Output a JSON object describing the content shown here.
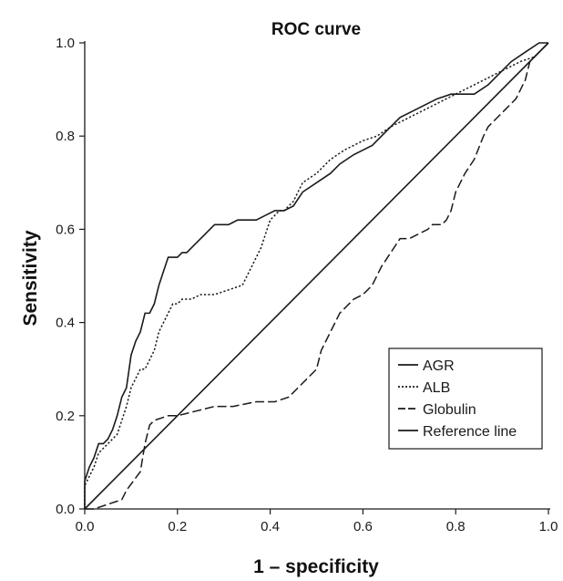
{
  "chart_data": {
    "type": "line",
    "title": "ROC curve",
    "xlabel": "1 – specificity",
    "ylabel": "Sensitivity",
    "xlim": [
      0,
      1
    ],
    "ylim": [
      0,
      1
    ],
    "xticks": [
      "0.0",
      "0.2",
      "0.4",
      "0.6",
      "0.8",
      "1.0"
    ],
    "yticks": [
      "0.0",
      "0.2",
      "0.4",
      "0.6",
      "0.8",
      "1.0"
    ],
    "grid": false,
    "legend_position": "bottom-right",
    "series": [
      {
        "name": "AGR",
        "style": "solid",
        "color": "#1a1a1a",
        "x": [
          0,
          0,
          0.01,
          0.02,
          0.03,
          0.04,
          0.05,
          0.06,
          0.07,
          0.08,
          0.09,
          0.1,
          0.11,
          0.12,
          0.13,
          0.14,
          0.15,
          0.16,
          0.17,
          0.18,
          0.19,
          0.2,
          0.21,
          0.22,
          0.24,
          0.26,
          0.28,
          0.3,
          0.31,
          0.33,
          0.37,
          0.39,
          0.41,
          0.43,
          0.45,
          0.47,
          0.5,
          0.53,
          0.55,
          0.58,
          0.6,
          0.62,
          0.64,
          0.66,
          0.68,
          0.72,
          0.76,
          0.79,
          0.84,
          0.87,
          0.9,
          0.92,
          0.95,
          0.98,
          1.0
        ],
        "y": [
          0,
          0.06,
          0.09,
          0.11,
          0.14,
          0.14,
          0.15,
          0.17,
          0.2,
          0.24,
          0.26,
          0.33,
          0.36,
          0.38,
          0.42,
          0.42,
          0.44,
          0.48,
          0.51,
          0.54,
          0.54,
          0.54,
          0.55,
          0.55,
          0.57,
          0.59,
          0.61,
          0.61,
          0.61,
          0.62,
          0.62,
          0.63,
          0.64,
          0.64,
          0.65,
          0.68,
          0.7,
          0.72,
          0.74,
          0.76,
          0.77,
          0.78,
          0.8,
          0.82,
          0.84,
          0.86,
          0.88,
          0.89,
          0.89,
          0.91,
          0.94,
          0.96,
          0.98,
          1.0,
          1.0
        ]
      },
      {
        "name": "ALB",
        "style": "dotted",
        "color": "#1a1a1a",
        "x": [
          0,
          0,
          0.01,
          0.02,
          0.03,
          0.05,
          0.07,
          0.08,
          0.09,
          0.1,
          0.11,
          0.12,
          0.13,
          0.14,
          0.15,
          0.16,
          0.17,
          0.18,
          0.19,
          0.2,
          0.21,
          0.23,
          0.25,
          0.28,
          0.31,
          0.34,
          0.36,
          0.38,
          0.4,
          0.42,
          0.43,
          0.45,
          0.47,
          0.5,
          0.53,
          0.56,
          0.6,
          0.63,
          0.66,
          0.7,
          0.74,
          0.78,
          0.82,
          0.86,
          0.9,
          0.94,
          0.97,
          1.0
        ],
        "y": [
          0,
          0.05,
          0.07,
          0.09,
          0.12,
          0.14,
          0.16,
          0.19,
          0.22,
          0.26,
          0.28,
          0.3,
          0.3,
          0.32,
          0.34,
          0.38,
          0.4,
          0.42,
          0.44,
          0.44,
          0.45,
          0.45,
          0.46,
          0.46,
          0.47,
          0.48,
          0.52,
          0.56,
          0.62,
          0.64,
          0.64,
          0.66,
          0.7,
          0.72,
          0.75,
          0.77,
          0.79,
          0.8,
          0.82,
          0.84,
          0.86,
          0.88,
          0.9,
          0.92,
          0.94,
          0.96,
          0.97,
          1.0
        ]
      },
      {
        "name": "Globulin",
        "style": "dashed",
        "color": "#1a1a1a",
        "x": [
          0,
          0.02,
          0.08,
          0.09,
          0.12,
          0.13,
          0.14,
          0.15,
          0.18,
          0.2,
          0.24,
          0.28,
          0.32,
          0.37,
          0.41,
          0.44,
          0.47,
          0.5,
          0.51,
          0.53,
          0.55,
          0.57,
          0.58,
          0.6,
          0.62,
          0.64,
          0.66,
          0.68,
          0.7,
          0.72,
          0.74,
          0.75,
          0.77,
          0.78,
          0.79,
          0.8,
          0.81,
          0.82,
          0.84,
          0.86,
          0.87,
          0.89,
          0.91,
          0.93,
          0.95,
          0.96,
          1.0
        ],
        "y": [
          0,
          0,
          0.02,
          0.04,
          0.08,
          0.14,
          0.18,
          0.19,
          0.2,
          0.2,
          0.21,
          0.22,
          0.22,
          0.23,
          0.23,
          0.24,
          0.27,
          0.3,
          0.34,
          0.38,
          0.42,
          0.44,
          0.45,
          0.46,
          0.48,
          0.52,
          0.55,
          0.58,
          0.58,
          0.59,
          0.6,
          0.61,
          0.61,
          0.62,
          0.64,
          0.68,
          0.7,
          0.72,
          0.75,
          0.8,
          0.82,
          0.84,
          0.86,
          0.88,
          0.92,
          0.96,
          1.0
        ]
      },
      {
        "name": "Reference line",
        "style": "solid",
        "color": "#1a1a1a",
        "x": [
          0,
          1
        ],
        "y": [
          0,
          1
        ]
      }
    ]
  }
}
